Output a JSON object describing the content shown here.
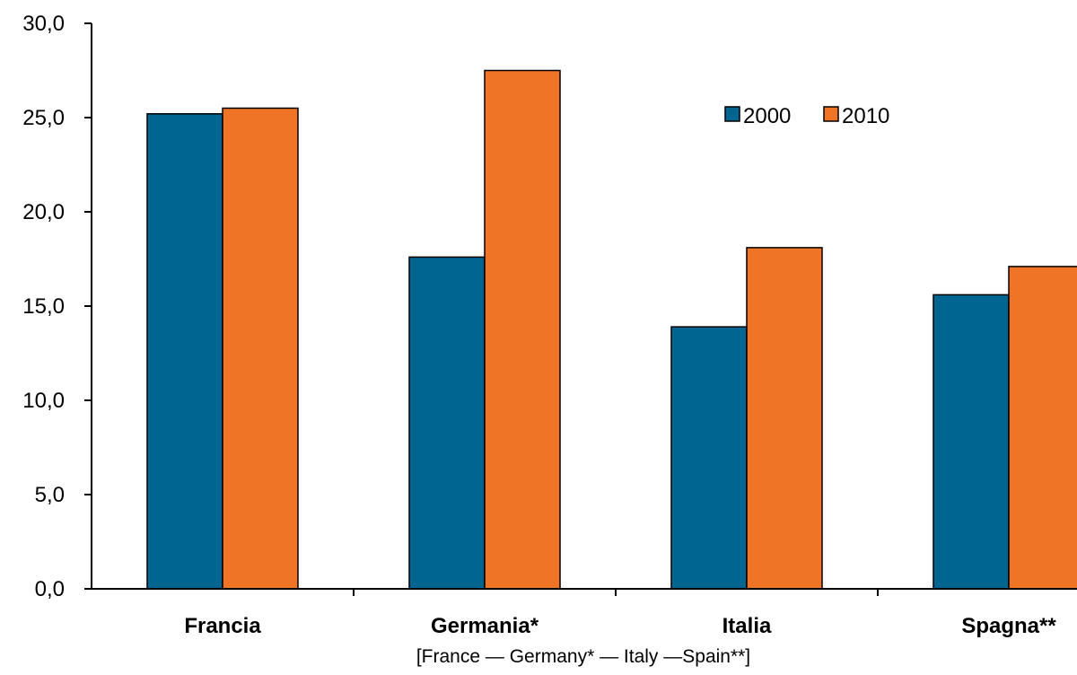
{
  "chart_data": {
    "type": "bar",
    "categories": [
      "Francia",
      "Germania*",
      "Italia",
      "Spagna**"
    ],
    "series": [
      {
        "name": "2000",
        "color": "#006591",
        "values": [
          25.2,
          17.6,
          13.9,
          15.6
        ]
      },
      {
        "name": "2010",
        "color": "#f07426",
        "values": [
          25.5,
          27.5,
          18.1,
          17.1
        ]
      }
    ],
    "ylim": [
      0,
      30
    ],
    "yticks": [
      "0,0",
      "5,0",
      "10,0",
      "15,0",
      "20,0",
      "25,0",
      "30,0"
    ],
    "grid": false,
    "legend_position": "top-right"
  },
  "caption": "[France — Germany* — Italy —Spain**]"
}
